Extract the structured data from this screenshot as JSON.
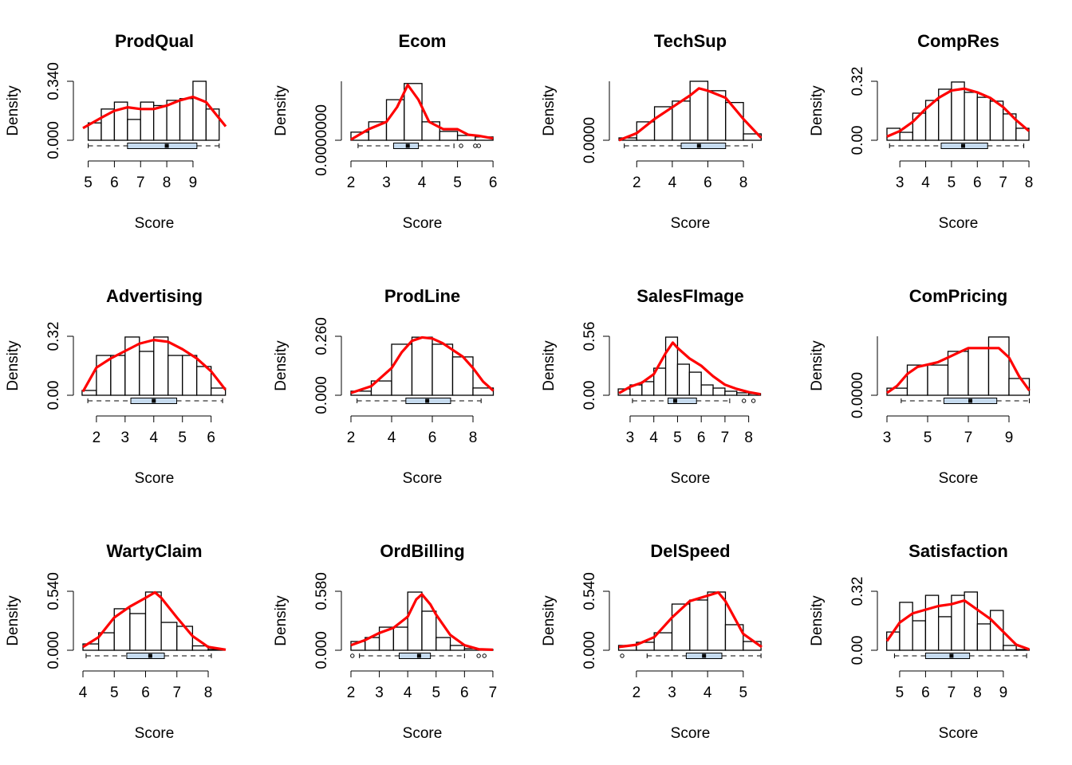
{
  "chart_data": [
    {
      "type": "histogram",
      "title": "ProdQual",
      "xlabel": "Score",
      "ylabel": "Density",
      "xlim": [
        4.8,
        10.25
      ],
      "xticks": [
        5,
        6,
        7,
        8,
        9
      ],
      "ylim": [
        0,
        0.34
      ],
      "yticks": [
        {
          "value": 0,
          "label": "0.000"
        },
        {
          "value": 0.34,
          "label": "0.340"
        }
      ],
      "bins": [
        5,
        5.5,
        6,
        6.5,
        7,
        7.5,
        8,
        8.5,
        9,
        9.5,
        10
      ],
      "values": [
        0.1,
        0.18,
        0.22,
        0.12,
        0.22,
        0.2,
        0.23,
        0.24,
        0.34,
        0.18
      ],
      "color": "#ff0000",
      "density": {
        "x": [
          4.8,
          5.5,
          6,
          6.5,
          7,
          7.5,
          8,
          8.5,
          9,
          9.5,
          10.25
        ],
        "y": [
          0.07,
          0.13,
          0.17,
          0.19,
          0.18,
          0.18,
          0.2,
          0.23,
          0.25,
          0.22,
          0.08
        ]
      },
      "box": {
        "min": 5,
        "q1": 6.5,
        "median": 8,
        "q3": 9.15,
        "max": 10,
        "outliers": []
      }
    },
    {
      "type": "histogram",
      "title": "Ecom",
      "xlabel": "Score",
      "ylabel": "Density",
      "xlim": [
        2,
        6.02
      ],
      "xticks": [
        2,
        3,
        4,
        5,
        6
      ],
      "ylim": [
        0,
        1.6
      ],
      "yticks": [
        {
          "value": 0,
          "label": "0.0000000"
        }
      ],
      "bins": [
        2,
        2.5,
        3,
        3.5,
        4,
        4.5,
        5,
        5.5,
        6
      ],
      "values": [
        0.22,
        0.5,
        1.1,
        1.54,
        0.5,
        0.24,
        0.13,
        0.09
      ],
      "color": "#ff0000",
      "density": {
        "x": [
          2,
          2.5,
          3,
          3.3,
          3.6,
          3.9,
          4.2,
          4.6,
          5,
          5.3,
          5.6,
          6
        ],
        "y": [
          0.02,
          0.3,
          0.5,
          0.9,
          1.5,
          1.1,
          0.5,
          0.3,
          0.3,
          0.15,
          0.12,
          0.05
        ]
      },
      "box": {
        "min": 2.2,
        "q1": 3.2,
        "median": 3.6,
        "q3": 3.9,
        "max": 4.9,
        "outliers": [
          5.1,
          5.5,
          5.6
        ]
      }
    },
    {
      "type": "histogram",
      "title": "TechSup",
      "xlabel": "Score",
      "ylabel": "Density",
      "xlim": [
        1,
        9.03
      ],
      "xticks": [
        2,
        4,
        6,
        8
      ],
      "ylim": [
        0,
        0.25
      ],
      "yticks": [
        {
          "value": 0,
          "label": "0.0000"
        }
      ],
      "bins": [
        1,
        2,
        3,
        4,
        5,
        6,
        7,
        8,
        9
      ],
      "values": [
        0.01,
        0.078,
        0.142,
        0.166,
        0.25,
        0.21,
        0.16,
        0.027
      ],
      "color": "#ff0000",
      "density": {
        "x": [
          1,
          2,
          3,
          4,
          5,
          5.5,
          6,
          7,
          8,
          9
        ],
        "y": [
          0,
          0.03,
          0.09,
          0.14,
          0.19,
          0.22,
          0.21,
          0.18,
          0.09,
          0.01
        ]
      },
      "box": {
        "min": 1.3,
        "q1": 4.5,
        "median": 5.5,
        "q3": 7,
        "max": 8.5,
        "outliers": []
      }
    },
    {
      "type": "histogram",
      "title": "CompRes",
      "xlabel": "Score",
      "ylabel": "Density",
      "xlim": [
        2.5,
        8.03
      ],
      "xticks": [
        3,
        4,
        5,
        6,
        7,
        8
      ],
      "ylim": [
        0,
        0.32
      ],
      "yticks": [
        {
          "value": 0,
          "label": "0.00"
        },
        {
          "value": 0.32,
          "label": "0.32"
        }
      ],
      "bins": [
        2.5,
        3,
        3.5,
        4,
        4.5,
        5,
        5.5,
        6,
        6.5,
        7,
        7.5,
        8
      ],
      "values": [
        0.065,
        0.043,
        0.147,
        0.216,
        0.277,
        0.316,
        0.26,
        0.233,
        0.212,
        0.143,
        0.065
      ],
      "color": "#ff0000",
      "density": {
        "x": [
          2.5,
          3,
          3.5,
          4,
          4.5,
          5,
          5.5,
          6,
          6.5,
          7,
          7.5,
          8
        ],
        "y": [
          0.02,
          0.05,
          0.1,
          0.17,
          0.23,
          0.27,
          0.28,
          0.26,
          0.23,
          0.18,
          0.11,
          0.05
        ]
      },
      "box": {
        "min": 2.6,
        "q1": 4.6,
        "median": 5.45,
        "q3": 6.4,
        "max": 7.8,
        "outliers": []
      }
    },
    {
      "type": "histogram",
      "title": "Advertising",
      "xlabel": "Score",
      "ylabel": "Density",
      "xlim": [
        1.53,
        6.51
      ],
      "xticks": [
        2,
        3,
        4,
        5,
        6
      ],
      "ylim": [
        0,
        0.32
      ],
      "yticks": [
        {
          "value": 0,
          "label": "0.00"
        },
        {
          "value": 0.32,
          "label": "0.32"
        }
      ],
      "bins": [
        1.5,
        2,
        2.5,
        3,
        3.5,
        4,
        4.5,
        5,
        5.5,
        6,
        6.5
      ],
      "values": [
        0.026,
        0.216,
        0.216,
        0.316,
        0.238,
        0.316,
        0.216,
        0.216,
        0.156,
        0.039
      ],
      "color": "#ff0000",
      "density": {
        "x": [
          1.53,
          2,
          2.5,
          3,
          3.5,
          4,
          4.5,
          5,
          5.5,
          6,
          6.5
        ],
        "y": [
          0.02,
          0.15,
          0.2,
          0.24,
          0.28,
          0.3,
          0.29,
          0.25,
          0.2,
          0.13,
          0.03
        ]
      },
      "box": {
        "min": 1.7,
        "q1": 3.2,
        "median": 4,
        "q3": 4.8,
        "max": 6.4,
        "outliers": []
      }
    },
    {
      "type": "histogram",
      "title": "ProdLine",
      "xlabel": "Score",
      "ylabel": "Density",
      "xlim": [
        2,
        9.02
      ],
      "xticks": [
        2,
        4,
        6,
        8
      ],
      "ylim": [
        0,
        0.26
      ],
      "yticks": [
        {
          "value": 0,
          "label": "0.000"
        },
        {
          "value": 0.26,
          "label": "0.260"
        }
      ],
      "bins": [
        2,
        3,
        4,
        5,
        6,
        7,
        8,
        9
      ],
      "values": [
        0.018,
        0.063,
        0.225,
        0.256,
        0.225,
        0.169,
        0.032
      ],
      "color": "#ff0000",
      "density": {
        "x": [
          2,
          3,
          4,
          4.5,
          5,
          5.5,
          6,
          6.5,
          7,
          7.5,
          8,
          8.5,
          9
        ],
        "y": [
          0.01,
          0.04,
          0.12,
          0.19,
          0.24,
          0.255,
          0.25,
          0.23,
          0.2,
          0.17,
          0.12,
          0.06,
          0.02
        ]
      },
      "box": {
        "min": 2.3,
        "q1": 4.7,
        "median": 5.75,
        "q3": 6.9,
        "max": 8.4,
        "outliers": []
      }
    },
    {
      "type": "histogram",
      "title": "SalesFImage",
      "xlabel": "Score",
      "ylabel": "Density",
      "xlim": [
        2.53,
        8.55
      ],
      "xticks": [
        3,
        4,
        5,
        6,
        7,
        8
      ],
      "ylim": [
        0,
        0.56
      ],
      "yticks": [
        {
          "value": 0,
          "label": "0.00"
        },
        {
          "value": 0.56,
          "label": "0.56"
        }
      ],
      "bins": [
        2.5,
        3,
        3.5,
        4,
        4.5,
        5,
        5.5,
        6,
        6.5,
        7,
        7.5,
        8,
        8.5
      ],
      "values": [
        0.06,
        0.098,
        0.129,
        0.257,
        0.552,
        0.295,
        0.219,
        0.098,
        0.068,
        0.038,
        0.023,
        0.015
      ],
      "color": "#ff0000",
      "density": {
        "x": [
          2.53,
          3,
          3.5,
          4,
          4.5,
          4.8,
          5,
          5.5,
          6,
          6.5,
          7,
          7.5,
          8,
          8.5
        ],
        "y": [
          0.02,
          0.08,
          0.12,
          0.2,
          0.4,
          0.5,
          0.45,
          0.35,
          0.28,
          0.18,
          0.1,
          0.06,
          0.03,
          0.01
        ]
      },
      "box": {
        "min": 3.1,
        "q1": 4.6,
        "median": 4.9,
        "q3": 5.8,
        "max": 7.2,
        "outliers": [
          7.8,
          8.2
        ]
      }
    },
    {
      "type": "histogram",
      "title": "ComPricing",
      "xlabel": "Score",
      "ylabel": "Density",
      "xlim": [
        3,
        10.02
      ],
      "xticks": [
        3,
        5,
        7,
        9
      ],
      "ylim": [
        0,
        0.25
      ],
      "yticks": [
        {
          "value": 0,
          "label": "0.0000"
        }
      ],
      "bins": [
        3,
        4,
        5,
        6,
        7,
        8,
        9,
        10
      ],
      "values": [
        0.03,
        0.128,
        0.128,
        0.186,
        0.2,
        0.247,
        0.071
      ],
      "color": "#ff0000",
      "density": {
        "x": [
          3,
          3.5,
          4,
          4.5,
          5,
          5.5,
          6,
          6.5,
          7,
          7.5,
          8,
          8.5,
          9,
          9.5,
          10
        ],
        "y": [
          0.01,
          0.04,
          0.09,
          0.12,
          0.13,
          0.14,
          0.16,
          0.18,
          0.2,
          0.2,
          0.2,
          0.2,
          0.16,
          0.08,
          0.02
        ]
      },
      "box": {
        "min": 3.7,
        "q1": 5.8,
        "median": 7.1,
        "q3": 8.4,
        "max": 10,
        "outliers": []
      }
    },
    {
      "type": "histogram",
      "title": "WartyClaim",
      "xlabel": "Score",
      "ylabel": "Density",
      "xlim": [
        4,
        8.56
      ],
      "xticks": [
        4,
        5,
        6,
        7,
        8
      ],
      "ylim": [
        0,
        0.54
      ],
      "yticks": [
        {
          "value": 0,
          "label": "0.000"
        },
        {
          "value": 0.54,
          "label": "0.540"
        }
      ],
      "bins": [
        4,
        4.5,
        5,
        5.5,
        6,
        6.5,
        7,
        7.5,
        8,
        8.5
      ],
      "values": [
        0.058,
        0.16,
        0.38,
        0.336,
        0.533,
        0.255,
        0.219,
        0.04,
        0.007
      ],
      "color": "#ff0000",
      "density": {
        "x": [
          4,
          4.5,
          5,
          5.5,
          6,
          6.3,
          6.5,
          7,
          7.5,
          8,
          8.56
        ],
        "y": [
          0.03,
          0.12,
          0.3,
          0.4,
          0.48,
          0.53,
          0.48,
          0.3,
          0.13,
          0.03,
          0.005
        ]
      },
      "box": {
        "min": 4.1,
        "q1": 5.4,
        "median": 6.15,
        "q3": 6.6,
        "max": 8.1,
        "outliers": []
      }
    },
    {
      "type": "histogram",
      "title": "OrdBilling",
      "xlabel": "Score",
      "ylabel": "Density",
      "xlim": [
        2,
        7.03
      ],
      "xticks": [
        2,
        3,
        4,
        5,
        6,
        7
      ],
      "ylim": [
        0,
        0.58
      ],
      "yticks": [
        {
          "value": 0,
          "label": "0.000"
        },
        {
          "value": 0.58,
          "label": "0.580"
        }
      ],
      "bins": [
        2,
        2.5,
        3,
        3.5,
        4,
        4.5,
        5,
        5.5,
        6,
        6.5,
        7
      ],
      "values": [
        0.086,
        0.125,
        0.227,
        0.227,
        0.572,
        0.384,
        0.125,
        0.047,
        0.016,
        0.008
      ],
      "color": "#ff0000",
      "density": {
        "x": [
          2,
          2.5,
          3,
          3.5,
          4,
          4.3,
          4.5,
          4.8,
          5,
          5.5,
          6,
          6.5,
          7
        ],
        "y": [
          0.05,
          0.1,
          0.17,
          0.22,
          0.33,
          0.5,
          0.55,
          0.45,
          0.35,
          0.15,
          0.05,
          0.01,
          0.005
        ]
      },
      "box": {
        "min": 2.3,
        "q1": 3.7,
        "median": 4.4,
        "q3": 4.8,
        "max": 6,
        "outliers": [
          2.05,
          6.5,
          6.7
        ]
      }
    },
    {
      "type": "histogram",
      "title": "DelSpeed",
      "xlabel": "Score",
      "ylabel": "Density",
      "xlim": [
        1.51,
        5.52
      ],
      "xticks": [
        2,
        3,
        4,
        5
      ],
      "ylim": [
        0,
        0.54
      ],
      "yticks": [
        {
          "value": 0,
          "label": "0.000"
        },
        {
          "value": 0.54,
          "label": "0.540"
        }
      ],
      "bins": [
        1.5,
        2,
        2.5,
        3,
        3.5,
        4,
        4.5,
        5,
        5.5
      ],
      "values": [
        0.044,
        0.073,
        0.16,
        0.423,
        0.46,
        0.533,
        0.234,
        0.08
      ],
      "color": "#ff0000",
      "density": {
        "x": [
          1.51,
          2,
          2.5,
          3,
          3.5,
          4,
          4.3,
          4.5,
          5,
          5.52
        ],
        "y": [
          0.03,
          0.05,
          0.12,
          0.3,
          0.45,
          0.5,
          0.53,
          0.45,
          0.15,
          0.03
        ]
      },
      "box": {
        "min": 2.3,
        "q1": 3.4,
        "median": 3.9,
        "q3": 4.4,
        "max": 5.5,
        "outliers": [
          1.6
        ]
      }
    },
    {
      "type": "histogram",
      "title": "Satisfaction",
      "xlabel": "Score",
      "ylabel": "Density",
      "xlim": [
        4.51,
        10.02
      ],
      "xticks": [
        5,
        6,
        7,
        8,
        9
      ],
      "ylim": [
        0,
        0.32
      ],
      "yticks": [
        {
          "value": 0,
          "label": "0.00"
        },
        {
          "value": 0.32,
          "label": "0.32"
        }
      ],
      "bins": [
        4.5,
        5,
        5.5,
        6,
        6.5,
        7,
        7.5,
        8,
        8.5,
        9,
        9.5,
        10
      ],
      "values": [
        0.099,
        0.26,
        0.16,
        0.298,
        0.182,
        0.298,
        0.316,
        0.143,
        0.216,
        0.026,
        0.004
      ],
      "color": "#ff0000",
      "density": {
        "x": [
          4.51,
          5,
          5.5,
          6,
          6.5,
          7,
          7.5,
          8,
          8.5,
          9,
          9.5,
          10
        ],
        "y": [
          0.05,
          0.15,
          0.2,
          0.22,
          0.24,
          0.25,
          0.27,
          0.22,
          0.17,
          0.1,
          0.03,
          0.005
        ]
      },
      "box": {
        "min": 4.8,
        "q1": 6,
        "median": 7,
        "q3": 7.7,
        "max": 9.9,
        "outliers": []
      }
    }
  ]
}
